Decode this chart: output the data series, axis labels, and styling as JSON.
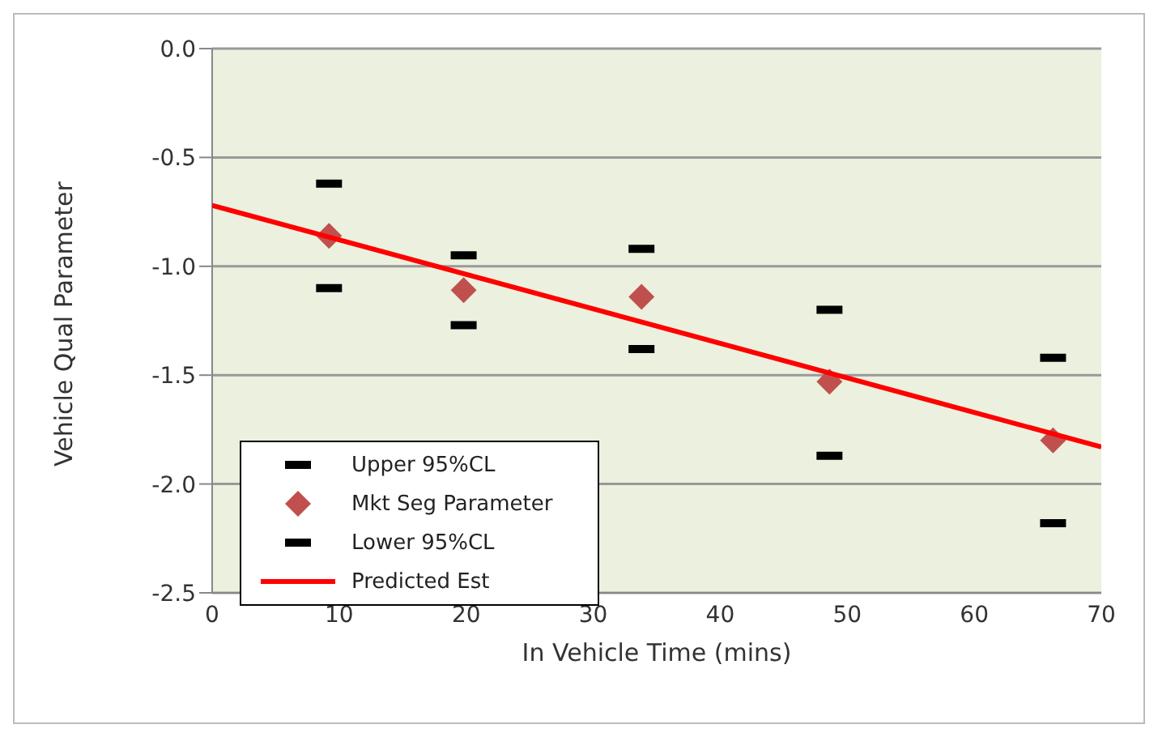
{
  "chart_data": {
    "type": "scatter",
    "xlabel": "In Vehicle Time (mins)",
    "ylabel": "Vehicle Qual Parameter",
    "x": [
      9.2,
      19.8,
      33.8,
      48.6,
      66.2
    ],
    "series": [
      {
        "name": "Upper 95%CL",
        "color": "#000000",
        "values": [
          -0.62,
          -0.95,
          -0.92,
          -1.2,
          -1.42
        ]
      },
      {
        "name": "Mkt Seg Parameter",
        "color": "#c0504d",
        "marker": "diamond",
        "values": [
          -0.86,
          -1.11,
          -1.14,
          -1.53,
          -1.8
        ]
      },
      {
        "name": "Lower 95%CL",
        "color": "#000000",
        "values": [
          -1.1,
          -1.27,
          -1.38,
          -1.87,
          -2.18
        ]
      },
      {
        "name": "Predicted Est",
        "type": "line",
        "color": "#ff0000",
        "x": [
          0,
          70
        ],
        "values": [
          -0.72,
          -1.83
        ]
      }
    ],
    "xlim": [
      0,
      70
    ],
    "xticks": [
      0,
      10,
      20,
      30,
      40,
      50,
      60,
      70
    ],
    "ylim": [
      -2.5,
      0
    ],
    "yticks": [
      {
        "value": 0,
        "label": "0.0"
      },
      -0.5,
      {
        "value": -1,
        "label": "-1.0"
      },
      -1.5,
      {
        "value": -2,
        "label": "-2.0"
      },
      -2.5
    ],
    "grid": "y",
    "legend": "bottom left"
  }
}
